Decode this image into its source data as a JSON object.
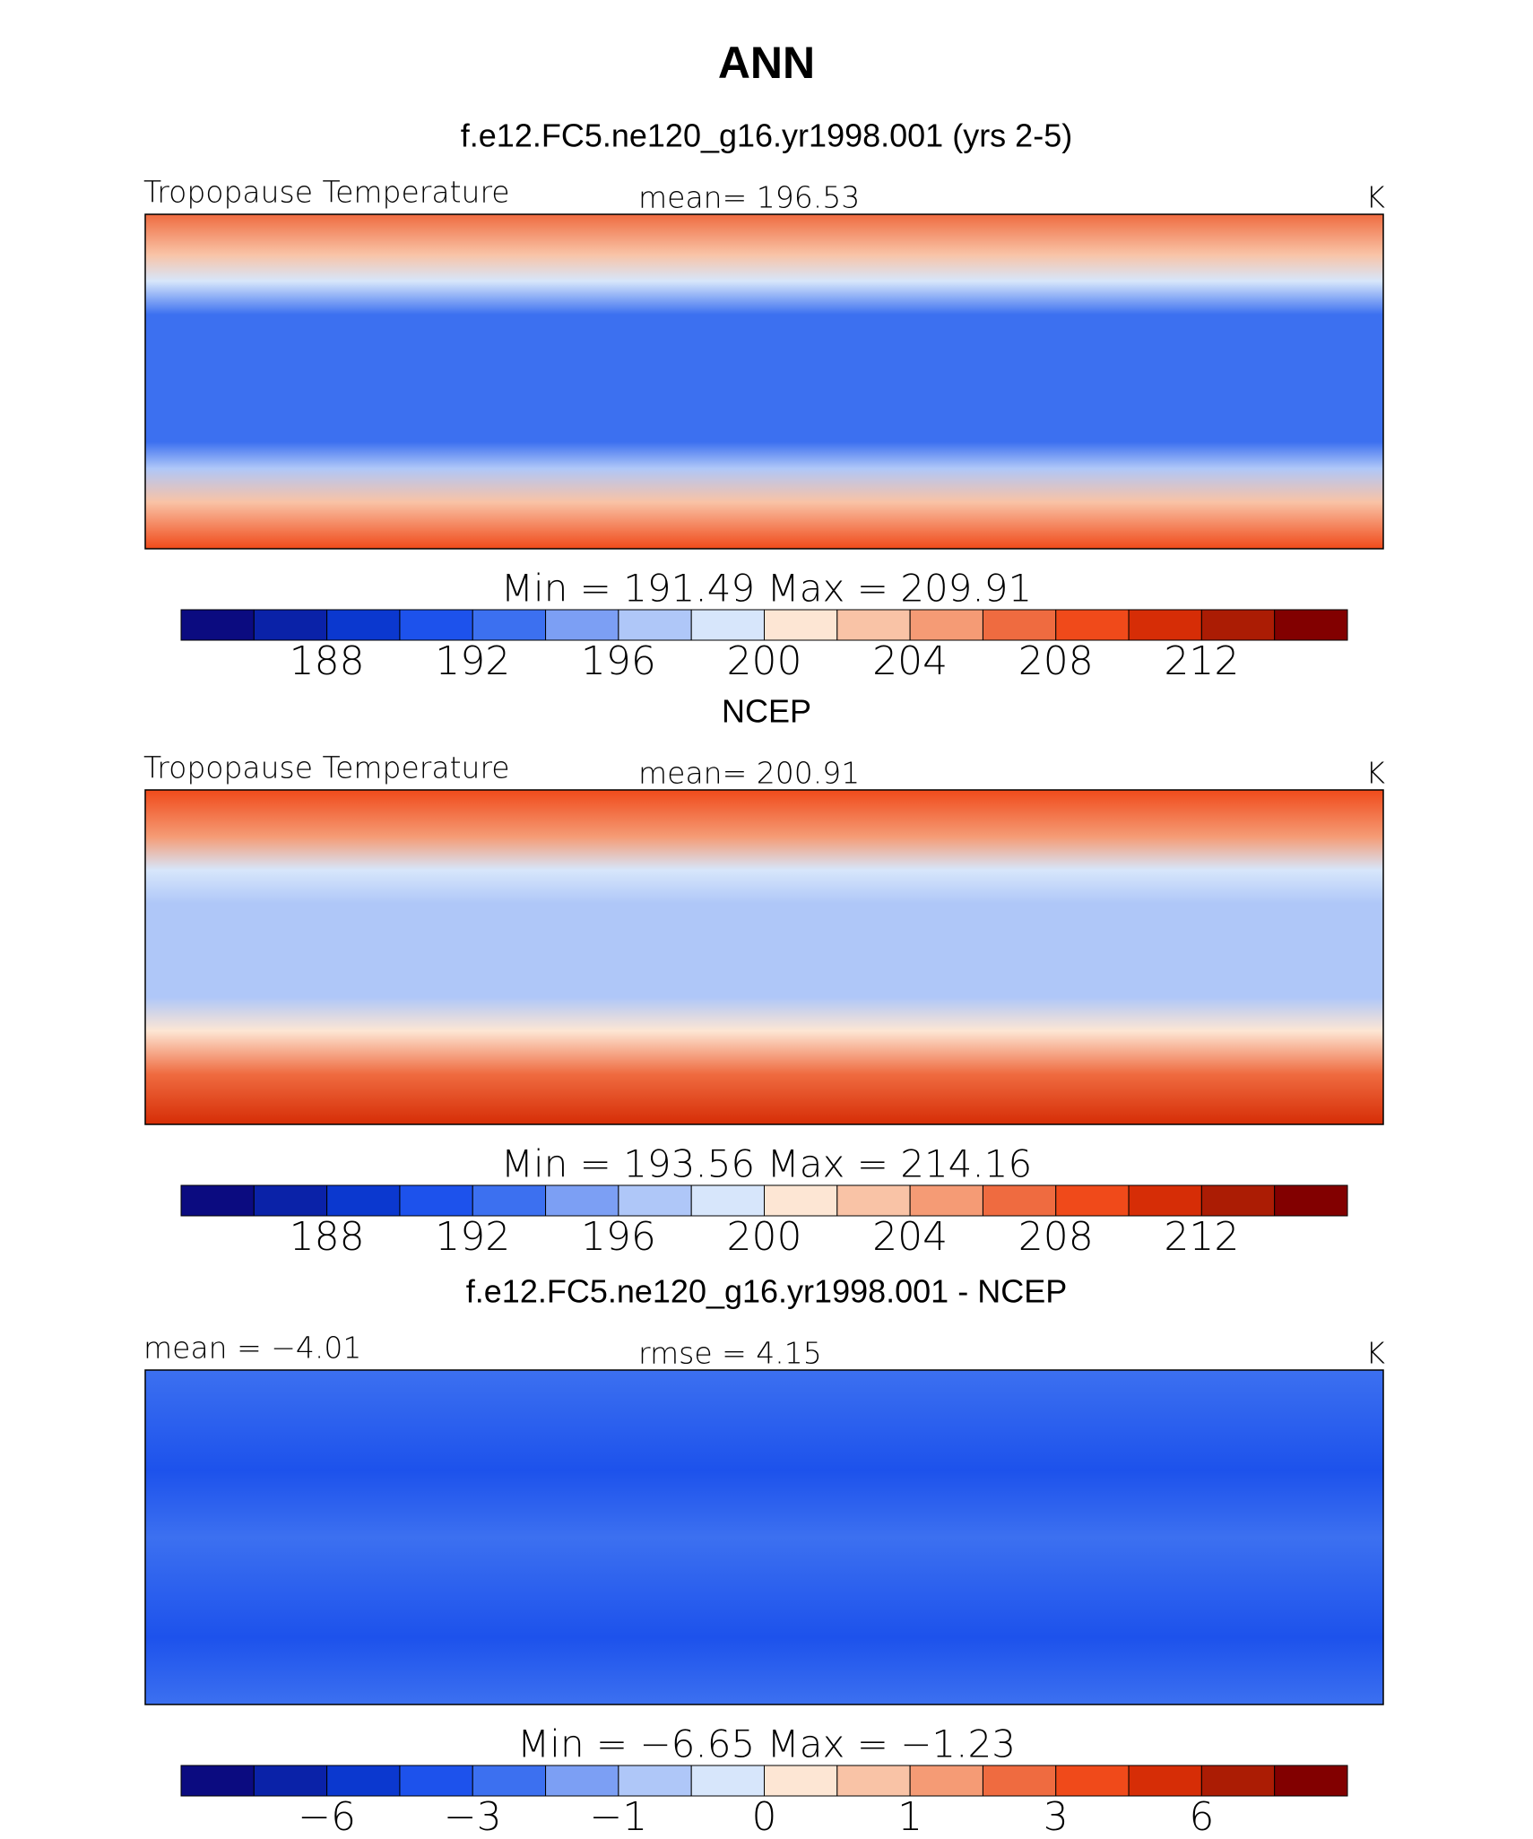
{
  "figure_title": "ANN",
  "chart_data": [
    {
      "type": "contour-map",
      "title": "f.e12.FC5.ne120_g16.yr1998.001 (yrs 2-5)",
      "left_label": "Tropopause Temperature",
      "center_label": "mean= 196.53",
      "units": "K",
      "stats": "Min = 191.49 Max = 209.91",
      "colors": [
        "#0b0b80",
        "#0a22a8",
        "#0b38cf",
        "#1d52ec",
        "#3c70f0",
        "#7c9ff4",
        "#afc7f8",
        "#d7e6fb",
        "#fde6d4",
        "#f9c3a6",
        "#f59b75",
        "#ef6b40",
        "#f04a1a",
        "#d62d06",
        "#ab1c04",
        "#820000"
      ],
      "colorbar_ticks": [
        188,
        192,
        196,
        200,
        204,
        208,
        212
      ]
    },
    {
      "type": "contour-map",
      "title": "NCEP",
      "left_label": "Tropopause Temperature",
      "center_label": "mean= 200.91",
      "units": "K",
      "stats": "Min = 193.56 Max = 214.16",
      "colors": [
        "#0b0b80",
        "#0a22a8",
        "#0b38cf",
        "#1d52ec",
        "#3c70f0",
        "#7c9ff4",
        "#afc7f8",
        "#d7e6fb",
        "#fde6d4",
        "#f9c3a6",
        "#f59b75",
        "#ef6b40",
        "#f04a1a",
        "#d62d06",
        "#ab1c04",
        "#820000"
      ],
      "colorbar_ticks": [
        188,
        192,
        196,
        200,
        204,
        208,
        212
      ]
    },
    {
      "type": "contour-map",
      "title": "f.e12.FC5.ne120_g16.yr1998.001 - NCEP",
      "left_label": "mean =  −4.01",
      "center_label": "rmse =    4.15",
      "units": "K",
      "stats": "Min =   −6.65 Max =   −1.23",
      "colors": [
        "#0b0b80",
        "#0a22a8",
        "#0b38cf",
        "#1d52ec",
        "#3c70f0",
        "#7c9ff4",
        "#afc7f8",
        "#d7e6fb",
        "#fde6d4",
        "#f9c3a6",
        "#f59b75",
        "#ef6b40",
        "#f04a1a",
        "#d62d06",
        "#ab1c04",
        "#820000"
      ],
      "colorbar_ticks": [
        {
          "value": -6,
          "label": "−6"
        },
        {
          "value": -3,
          "label": "−3"
        },
        {
          "value": -1,
          "label": "−1"
        },
        0,
        1,
        3,
        6
      ]
    }
  ]
}
